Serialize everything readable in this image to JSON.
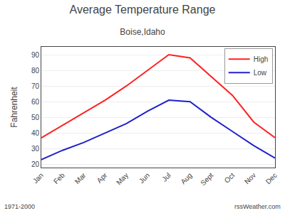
{
  "chart_data": {
    "type": "line",
    "title": "Average Temperature Range",
    "subtitle": "Boise,Idaho",
    "ylabel": "Fahrenheit",
    "annotations": [
      "1971-2000",
      "rssWeather.com"
    ],
    "categories": [
      "Jan",
      "Feb",
      "Mar",
      "Apr",
      "May",
      "Jun",
      "Jul",
      "Aug",
      "Sept",
      "Oct",
      "Nov",
      "Dec"
    ],
    "series": [
      {
        "name": "High",
        "color": "#ff2020",
        "values": [
          37,
          45,
          53,
          61,
          70,
          80,
          90,
          88,
          76,
          64,
          47,
          37
        ]
      },
      {
        "name": "Low",
        "color": "#2020cc",
        "values": [
          23,
          29,
          34,
          40,
          46,
          54,
          61,
          60,
          50,
          41,
          32,
          24
        ]
      }
    ],
    "ylim": [
      18,
      95
    ],
    "yticks": [
      20,
      30,
      40,
      50,
      60,
      70,
      80,
      90
    ],
    "grid": true,
    "legend": "upper right"
  }
}
